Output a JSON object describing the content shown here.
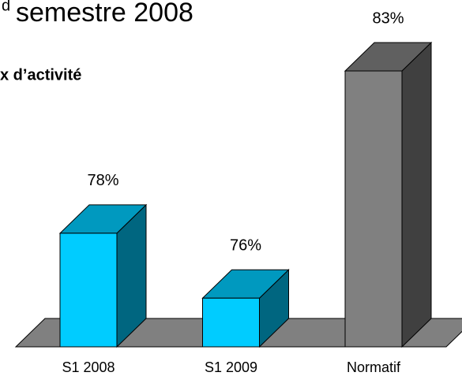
{
  "chart_data": {
    "type": "bar3d",
    "title_sup": "d",
    "title": "semestre 2008",
    "subtitle": "x d’activité",
    "categories": [
      "S1 2008",
      "S1 2009",
      "Normatif"
    ],
    "values": [
      78,
      76,
      83
    ],
    "value_labels": [
      "78%",
      "76%",
      "83%"
    ],
    "colors": [
      "#00ccff",
      "#00ccff",
      "#808080"
    ],
    "floor_color": "#808080",
    "ylim": [
      74.5,
      83
    ]
  }
}
